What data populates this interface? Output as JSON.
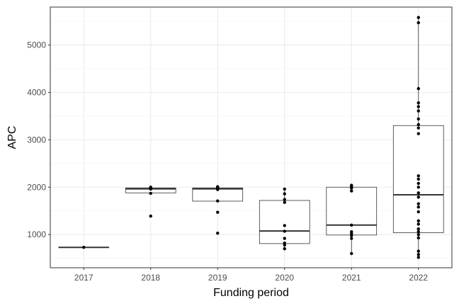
{
  "chart_data": {
    "type": "box",
    "xlabel": "Funding period",
    "ylabel": "APC",
    "ylim": [
      300,
      5800
    ],
    "grid": true,
    "y_ticks": [
      1000,
      2000,
      3000,
      4000,
      5000
    ],
    "categories": [
      "2017",
      "2018",
      "2019",
      "2020",
      "2021",
      "2022"
    ],
    "boxes": [
      {
        "category": "2017",
        "q1": 725,
        "median": 730,
        "q3": 735,
        "whisker_low": 725,
        "whisker_high": 735,
        "points": [
          730
        ]
      },
      {
        "category": "2018",
        "q1": 1880,
        "median": 1965,
        "q3": 1985,
        "whisker_low": 1880,
        "whisker_high": 1985,
        "points": [
          1390,
          1870,
          1960,
          1975,
          1990,
          2000
        ]
      },
      {
        "category": "2019",
        "q1": 1705,
        "median": 1965,
        "q3": 1985,
        "whisker_low": 1705,
        "whisker_high": 2010,
        "points": [
          1030,
          1470,
          1710,
          1950,
          1975,
          1995,
          2010
        ]
      },
      {
        "category": "2020",
        "q1": 810,
        "median": 1075,
        "q3": 1720,
        "whisker_low": 700,
        "whisker_high": 1960,
        "points": [
          700,
          780,
          820,
          920,
          1070,
          1190,
          1680,
          1740,
          1860,
          1960
        ]
      },
      {
        "category": "2021",
        "q1": 990,
        "median": 1200,
        "q3": 2000,
        "whisker_low": 600,
        "whisker_high": 2040,
        "points": [
          600,
          920,
          980,
          1020,
          1060,
          1200,
          1920,
          1980,
          2010,
          2040
        ]
      },
      {
        "category": "2022",
        "q1": 1040,
        "median": 1840,
        "q3": 3300,
        "whisker_low": 520,
        "whisker_high": 5580,
        "points": [
          520,
          580,
          650,
          930,
          1000,
          1060,
          1120,
          1220,
          1290,
          1480,
          1580,
          1650,
          1790,
          1880,
          2000,
          2080,
          2170,
          2240,
          3130,
          3250,
          3320,
          3440,
          3610,
          3700,
          3780,
          4080,
          5470,
          5580
        ]
      }
    ]
  }
}
